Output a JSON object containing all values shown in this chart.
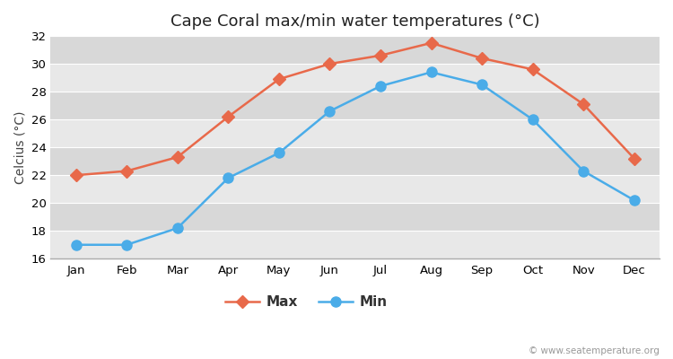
{
  "title": "Cape Coral max/min water temperatures (°C)",
  "ylabel": "Celcius (°C)",
  "months": [
    "Jan",
    "Feb",
    "Mar",
    "Apr",
    "May",
    "Jun",
    "Jul",
    "Aug",
    "Sep",
    "Oct",
    "Nov",
    "Dec"
  ],
  "max_temps": [
    22.0,
    22.3,
    23.3,
    26.2,
    28.9,
    30.0,
    30.6,
    31.5,
    30.4,
    29.6,
    27.1,
    23.2
  ],
  "min_temps": [
    17.0,
    17.0,
    18.2,
    21.8,
    23.6,
    26.6,
    28.4,
    29.4,
    28.5,
    26.0,
    22.3,
    20.2
  ],
  "max_color": "#E8694A",
  "min_color": "#4AACE8",
  "figure_bg_color": "#ffffff",
  "band_colors": [
    "#e8e8e8",
    "#d8d8d8"
  ],
  "grid_line_color": "#ffffff",
  "ylim": [
    16,
    32
  ],
  "yticks": [
    16,
    18,
    20,
    22,
    24,
    26,
    28,
    30,
    32
  ],
  "title_fontsize": 13,
  "label_fontsize": 10,
  "tick_fontsize": 9.5,
  "legend_fontsize": 11,
  "watermark": "© www.seatemperature.org",
  "max_marker": "D",
  "min_marker": "o",
  "linewidth": 1.8,
  "max_markersize": 7,
  "min_markersize": 8
}
